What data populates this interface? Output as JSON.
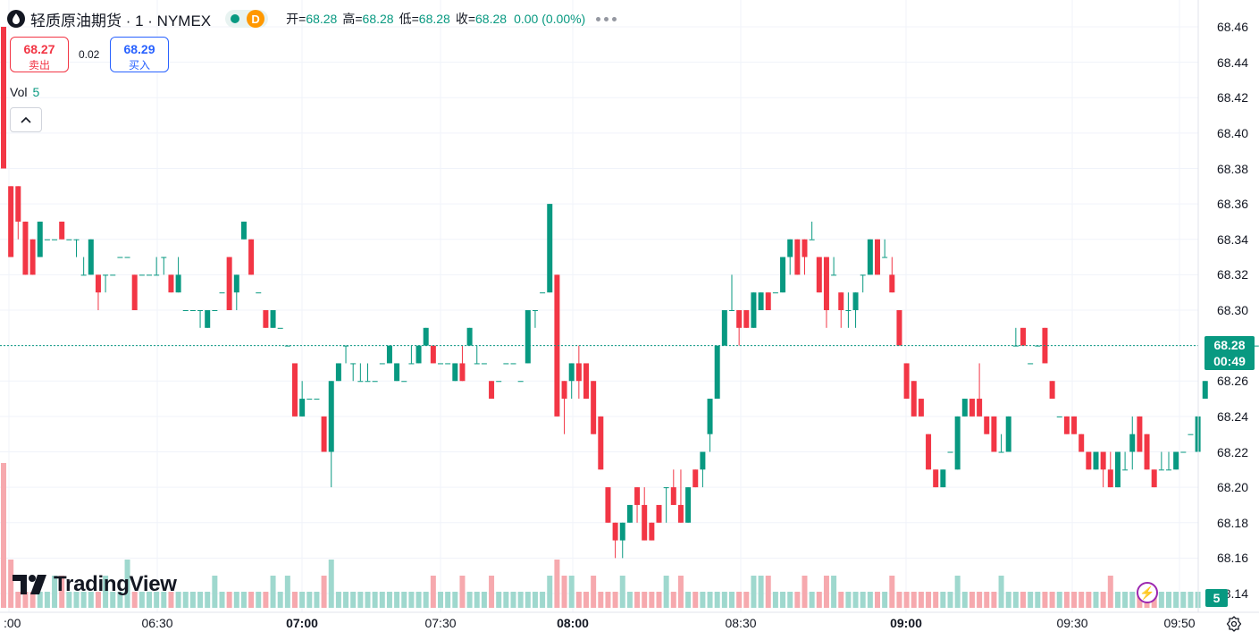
{
  "header": {
    "title": "轻质原油期货 · 1 · NYMEX",
    "badge": "D",
    "open_label": "开=",
    "open_value": "68.28",
    "high_label": "高=",
    "high_value": "68.28",
    "low_label": "低=",
    "low_value": "68.28",
    "close_label": "收=",
    "close_value": "68.28",
    "change": "0.00 (0.00%)"
  },
  "quote": {
    "sell_price": "68.27",
    "sell_label": "卖出",
    "spread": "0.02",
    "buy_price": "68.29",
    "buy_label": "买入"
  },
  "volume_legend": {
    "label": "Vol",
    "value": "5"
  },
  "last_price": {
    "price": "68.28",
    "countdown": "00:49"
  },
  "volume_badge": "5",
  "logo_text": "TradingView",
  "colors": {
    "up": "#089981",
    "down": "#f23645",
    "vol_up": "#9fd8ce",
    "vol_down": "#f6a9ae",
    "grid": "#f0f3fa"
  },
  "icons": [
    "drop-icon",
    "status-dot-icon",
    "more-dots-icon",
    "chevron-up-icon",
    "tradingview-logo-icon",
    "flash-icon",
    "settings-gear-icon"
  ],
  "chart_data": {
    "type": "candlestick",
    "symbol": "轻质原油期货 · 1 · NYMEX",
    "interval": "1 minute",
    "y_axis": {
      "ticks": [
        "68.46",
        "68.44",
        "68.42",
        "68.40",
        "68.38",
        "68.36",
        "68.34",
        "68.32",
        "68.30",
        "68.28",
        "68.26",
        "68.24",
        "68.22",
        "68.20",
        "68.18",
        "68.16",
        "68.14"
      ],
      "range": [
        68.13,
        68.47
      ],
      "side": "right"
    },
    "x_axis": {
      "ticks": [
        ":00",
        "06:30",
        "07:00",
        "07:30",
        "08:00",
        "08:30",
        "09:00",
        "09:30",
        "09:50"
      ],
      "bold_ticks": [
        "07:00",
        "08:00",
        "09:00"
      ]
    },
    "grid": true,
    "last_price_line": 68.28,
    "ohlc": [
      [
        68.46,
        68.46,
        68.38,
        68.38
      ],
      [
        68.37,
        68.37,
        68.33,
        68.33
      ],
      [
        68.37,
        68.37,
        68.34,
        68.35
      ],
      [
        68.35,
        68.35,
        68.32,
        68.32
      ],
      [
        68.34,
        68.34,
        68.32,
        68.32
      ],
      [
        68.33,
        68.35,
        68.33,
        68.35
      ],
      [
        68.34,
        68.34,
        68.34,
        68.34
      ],
      [
        68.34,
        68.34,
        68.34,
        68.34
      ],
      [
        68.35,
        68.35,
        68.34,
        68.34
      ],
      [
        68.34,
        68.34,
        68.34,
        68.34
      ],
      [
        68.34,
        68.34,
        68.33,
        68.34
      ],
      [
        68.32,
        68.33,
        68.32,
        68.32
      ],
      [
        68.32,
        68.34,
        68.32,
        68.34
      ],
      [
        68.32,
        68.32,
        68.3,
        68.31
      ],
      [
        68.32,
        68.32,
        68.31,
        68.32
      ],
      [
        68.32,
        68.32,
        68.32,
        68.32
      ],
      [
        68.33,
        68.33,
        68.33,
        68.33
      ],
      [
        68.33,
        68.33,
        68.33,
        68.33
      ],
      [
        68.32,
        68.32,
        68.3,
        68.3
      ],
      [
        68.32,
        68.32,
        68.32,
        68.32
      ],
      [
        68.32,
        68.32,
        68.32,
        68.32
      ],
      [
        68.32,
        68.33,
        68.32,
        68.32
      ],
      [
        68.33,
        68.33,
        68.32,
        68.33
      ],
      [
        68.32,
        68.32,
        68.31,
        68.31
      ],
      [
        68.31,
        68.33,
        68.31,
        68.32
      ],
      [
        68.3,
        68.3,
        68.3,
        68.3
      ],
      [
        68.3,
        68.3,
        68.3,
        68.3
      ],
      [
        68.3,
        68.3,
        68.29,
        68.3
      ],
      [
        68.29,
        68.3,
        68.29,
        68.3
      ],
      [
        68.3,
        68.3,
        68.3,
        68.3
      ],
      [
        68.31,
        68.31,
        68.31,
        68.31
      ],
      [
        68.33,
        68.33,
        68.3,
        68.3
      ],
      [
        68.31,
        68.32,
        68.3,
        68.32
      ],
      [
        68.34,
        68.35,
        68.34,
        68.35
      ],
      [
        68.34,
        68.34,
        68.32,
        68.32
      ],
      [
        68.31,
        68.31,
        68.31,
        68.31
      ],
      [
        68.3,
        68.3,
        68.29,
        68.29
      ],
      [
        68.29,
        68.3,
        68.29,
        68.3
      ],
      [
        68.29,
        68.29,
        68.29,
        68.29
      ],
      [
        68.28,
        68.28,
        68.28,
        68.28
      ],
      [
        68.27,
        68.27,
        68.24,
        68.24
      ],
      [
        68.24,
        68.26,
        68.24,
        68.25
      ],
      [
        68.25,
        68.25,
        68.25,
        68.25
      ],
      [
        68.25,
        68.25,
        68.25,
        68.25
      ],
      [
        68.24,
        68.24,
        68.22,
        68.22
      ],
      [
        68.22,
        68.26,
        68.2,
        68.26
      ],
      [
        68.26,
        68.27,
        68.26,
        68.27
      ],
      [
        68.28,
        68.28,
        68.27,
        68.28
      ],
      [
        68.27,
        68.27,
        68.26,
        68.27
      ],
      [
        68.26,
        68.27,
        68.26,
        68.26
      ],
      [
        68.26,
        68.27,
        68.26,
        68.26
      ],
      [
        68.26,
        68.26,
        68.26,
        68.26
      ],
      [
        68.27,
        68.27,
        68.27,
        68.27
      ],
      [
        68.27,
        68.28,
        68.27,
        68.28
      ],
      [
        68.26,
        68.27,
        68.26,
        68.27
      ],
      [
        68.26,
        68.26,
        68.26,
        68.26
      ],
      [
        68.27,
        68.28,
        68.27,
        68.27
      ],
      [
        68.27,
        68.28,
        68.27,
        68.28
      ],
      [
        68.28,
        68.29,
        68.28,
        68.29
      ],
      [
        68.28,
        68.28,
        68.27,
        68.27
      ],
      [
        68.27,
        68.27,
        68.27,
        68.27
      ],
      [
        68.27,
        68.27,
        68.27,
        68.27
      ],
      [
        68.26,
        68.27,
        68.26,
        68.27
      ],
      [
        68.27,
        68.28,
        68.26,
        68.26
      ],
      [
        68.28,
        68.29,
        68.28,
        68.29
      ],
      [
        68.27,
        68.28,
        68.27,
        68.27
      ],
      [
        68.27,
        68.27,
        68.27,
        68.27
      ],
      [
        68.26,
        68.26,
        68.25,
        68.25
      ],
      [
        68.26,
        68.26,
        68.26,
        68.26
      ],
      [
        68.27,
        68.27,
        68.27,
        68.27
      ],
      [
        68.27,
        68.27,
        68.27,
        68.27
      ],
      [
        68.26,
        68.26,
        68.26,
        68.26
      ],
      [
        68.27,
        68.3,
        68.27,
        68.3
      ],
      [
        68.3,
        68.3,
        68.29,
        68.3
      ],
      [
        68.31,
        68.31,
        68.31,
        68.31
      ],
      [
        68.31,
        68.36,
        68.31,
        68.36
      ],
      [
        68.32,
        68.32,
        68.24,
        68.24
      ],
      [
        68.26,
        68.26,
        68.23,
        68.25
      ],
      [
        68.26,
        68.27,
        68.25,
        68.27
      ],
      [
        68.27,
        68.28,
        68.25,
        68.26
      ],
      [
        68.27,
        68.27,
        68.25,
        68.25
      ],
      [
        68.26,
        68.26,
        68.23,
        68.23
      ],
      [
        68.24,
        68.24,
        68.21,
        68.21
      ],
      [
        68.2,
        68.2,
        68.18,
        68.18
      ],
      [
        68.18,
        68.18,
        68.16,
        68.17
      ],
      [
        68.17,
        68.18,
        68.16,
        68.18
      ],
      [
        68.18,
        68.19,
        68.18,
        68.19
      ],
      [
        68.2,
        68.2,
        68.18,
        68.19
      ],
      [
        68.19,
        68.2,
        68.17,
        68.17
      ],
      [
        68.18,
        68.18,
        68.17,
        68.17
      ],
      [
        68.19,
        68.19,
        68.18,
        68.18
      ],
      [
        68.2,
        68.2,
        68.18,
        68.2
      ],
      [
        68.2,
        68.21,
        68.19,
        68.19
      ],
      [
        68.19,
        68.21,
        68.18,
        68.18
      ],
      [
        68.18,
        68.2,
        68.18,
        68.2
      ],
      [
        68.21,
        68.21,
        68.2,
        68.2
      ],
      [
        68.21,
        68.22,
        68.2,
        68.22
      ],
      [
        68.23,
        68.25,
        68.22,
        68.25
      ],
      [
        68.25,
        68.28,
        68.25,
        68.28
      ],
      [
        68.28,
        68.3,
        68.28,
        68.3
      ],
      [
        68.3,
        68.32,
        68.3,
        68.3
      ],
      [
        68.3,
        68.3,
        68.28,
        68.29
      ],
      [
        68.3,
        68.3,
        68.29,
        68.29
      ],
      [
        68.29,
        68.31,
        68.29,
        68.31
      ],
      [
        68.3,
        68.31,
        68.3,
        68.31
      ],
      [
        68.31,
        68.31,
        68.3,
        68.3
      ],
      [
        68.31,
        68.31,
        68.31,
        68.31
      ],
      [
        68.31,
        68.33,
        68.31,
        68.33
      ],
      [
        68.33,
        68.34,
        68.32,
        68.34
      ],
      [
        68.34,
        68.34,
        68.32,
        68.32
      ],
      [
        68.34,
        68.34,
        68.32,
        68.33
      ],
      [
        68.34,
        68.35,
        68.34,
        68.34
      ],
      [
        68.33,
        68.33,
        68.31,
        68.31
      ],
      [
        68.33,
        68.33,
        68.29,
        68.3
      ],
      [
        68.32,
        68.33,
        68.32,
        68.32
      ],
      [
        68.31,
        68.31,
        68.29,
        68.3
      ],
      [
        68.3,
        68.31,
        68.29,
        68.3
      ],
      [
        68.3,
        68.31,
        68.29,
        68.31
      ],
      [
        68.32,
        68.32,
        68.31,
        68.32
      ],
      [
        68.32,
        68.34,
        68.32,
        68.34
      ],
      [
        68.34,
        68.34,
        68.32,
        68.32
      ],
      [
        68.33,
        68.34,
        68.33,
        68.33
      ],
      [
        68.32,
        68.33,
        68.31,
        68.31
      ],
      [
        68.3,
        68.3,
        68.28,
        68.28
      ],
      [
        68.27,
        68.27,
        68.25,
        68.25
      ],
      [
        68.26,
        68.26,
        68.24,
        68.24
      ],
      [
        68.25,
        68.25,
        68.24,
        68.24
      ],
      [
        68.23,
        68.23,
        68.21,
        68.21
      ],
      [
        68.21,
        68.21,
        68.2,
        68.2
      ],
      [
        68.2,
        68.21,
        68.2,
        68.21
      ],
      [
        68.22,
        68.22,
        68.22,
        68.22
      ],
      [
        68.21,
        68.24,
        68.21,
        68.24
      ],
      [
        68.24,
        68.25,
        68.24,
        68.25
      ],
      [
        68.25,
        68.25,
        68.24,
        68.24
      ],
      [
        68.25,
        68.27,
        68.24,
        68.24
      ],
      [
        68.24,
        68.24,
        68.23,
        68.23
      ],
      [
        68.24,
        68.24,
        68.22,
        68.22
      ],
      [
        68.22,
        68.23,
        68.22,
        68.22
      ],
      [
        68.22,
        68.24,
        68.22,
        68.24
      ],
      [
        68.28,
        68.29,
        68.28,
        68.28
      ],
      [
        68.29,
        68.29,
        68.28,
        68.28
      ],
      [
        68.27,
        68.27,
        68.27,
        68.27
      ],
      [
        68.28,
        68.28,
        68.28,
        68.28
      ],
      [
        68.29,
        68.29,
        68.27,
        68.27
      ],
      [
        68.26,
        68.26,
        68.25,
        68.25
      ],
      [
        68.24,
        68.24,
        68.24,
        68.24
      ],
      [
        68.24,
        68.24,
        68.23,
        68.23
      ],
      [
        68.24,
        68.24,
        68.23,
        68.23
      ],
      [
        68.23,
        68.23,
        68.22,
        68.22
      ],
      [
        68.22,
        68.22,
        68.21,
        68.21
      ],
      [
        68.21,
        68.22,
        68.21,
        68.22
      ],
      [
        68.22,
        68.22,
        68.2,
        68.21
      ],
      [
        68.21,
        68.22,
        68.2,
        68.2
      ],
      [
        68.2,
        68.22,
        68.2,
        68.22
      ],
      [
        68.21,
        68.22,
        68.21,
        68.21
      ],
      [
        68.22,
        68.24,
        68.21,
        68.23
      ],
      [
        68.24,
        68.24,
        68.22,
        68.22
      ],
      [
        68.23,
        68.23,
        68.21,
        68.21
      ],
      [
        68.21,
        68.21,
        68.2,
        68.2
      ],
      [
        68.21,
        68.22,
        68.21,
        68.21
      ],
      [
        68.21,
        68.22,
        68.21,
        68.21
      ],
      [
        68.21,
        68.22,
        68.21,
        68.22
      ],
      [
        68.22,
        68.22,
        68.22,
        68.22
      ],
      [
        68.23,
        68.23,
        68.23,
        68.23
      ],
      [
        68.22,
        68.24,
        68.22,
        68.24
      ],
      [
        68.25,
        68.26,
        68.25,
        68.26
      ],
      [
        68.27,
        68.28,
        68.27,
        68.27
      ],
      [
        68.27,
        68.27,
        68.27,
        68.27
      ],
      [
        68.27,
        68.28,
        68.27,
        68.28
      ],
      [
        68.28,
        68.28,
        68.28,
        68.28
      ],
      [
        68.28,
        68.28,
        68.28,
        68.28
      ],
      [
        68.28,
        68.28,
        68.28,
        68.28
      ],
      [
        68.28,
        68.28,
        68.28,
        68.28
      ]
    ],
    "volume": [
      9,
      3,
      1,
      1,
      1,
      1,
      1,
      2,
      2,
      1,
      1,
      1,
      1,
      1,
      2,
      1,
      1,
      3,
      1,
      1,
      1,
      1,
      1,
      1,
      1,
      1,
      1,
      1,
      1,
      2,
      1,
      1,
      1,
      1,
      1,
      1,
      1,
      2,
      1,
      2,
      1,
      1,
      1,
      1,
      2,
      3,
      1,
      1,
      1,
      1,
      1,
      1,
      1,
      1,
      1,
      1,
      1,
      1,
      1,
      2,
      1,
      1,
      1,
      2,
      1,
      1,
      1,
      2,
      1,
      1,
      1,
      1,
      1,
      1,
      1,
      2,
      3,
      2,
      2,
      1,
      1,
      2,
      1,
      1,
      1,
      2,
      1,
      1,
      1,
      1,
      1,
      2,
      1,
      2,
      1,
      1,
      1,
      1,
      1,
      1,
      1,
      1,
      1,
      2,
      2,
      2,
      1,
      1,
      1,
      1,
      2,
      1,
      1,
      2,
      2,
      1,
      1,
      1,
      1,
      1,
      1,
      1,
      2,
      1,
      1,
      1,
      1,
      1,
      1,
      1,
      1,
      2,
      1,
      1,
      1,
      1,
      1,
      2,
      1,
      1,
      1,
      1,
      1,
      1,
      1,
      1,
      1,
      1,
      1,
      1,
      1,
      1,
      2,
      1,
      1,
      1,
      1,
      1,
      1,
      1,
      1,
      1,
      1,
      1,
      1
    ]
  }
}
